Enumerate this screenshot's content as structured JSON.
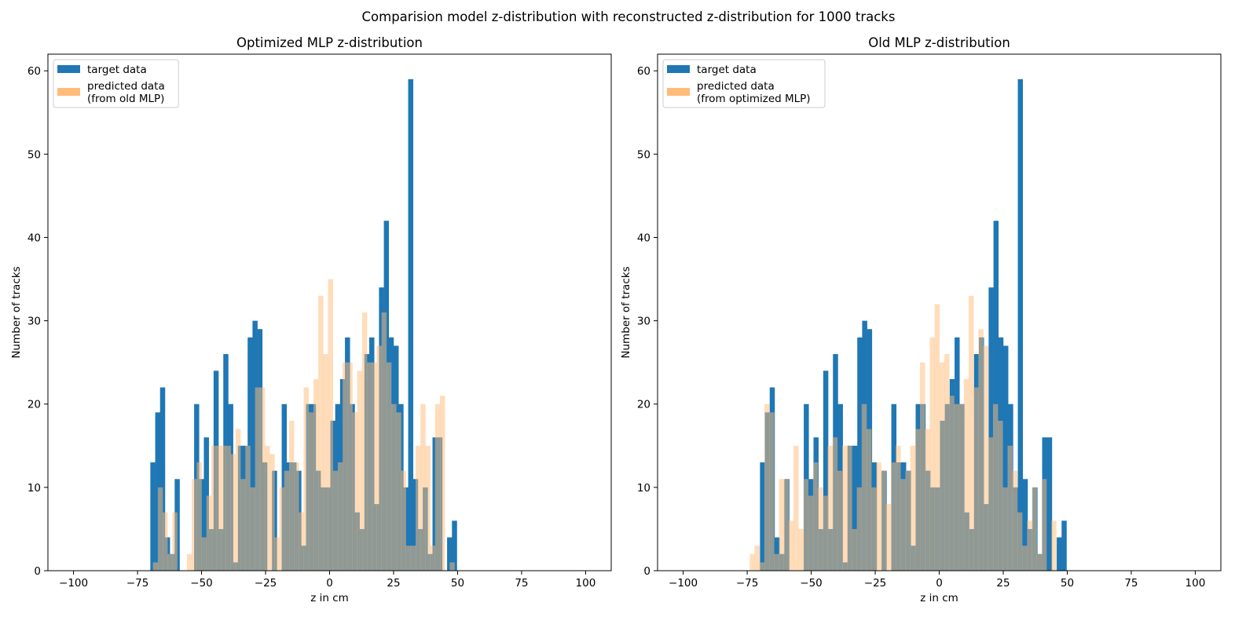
{
  "figure": {
    "suptitle": "Comparision model z-distribution with reconstructed z-distribution for 1000 tracks"
  },
  "colors": {
    "target": "#1f77b4",
    "predicted": "#ffbb78",
    "overlap": "#8e7860"
  },
  "chart_data": [
    {
      "type": "bar",
      "title": "Optimized MLP z-distribution",
      "xlabel": "z in cm",
      "ylabel": "Number of tracks",
      "xlim": [
        -110,
        110
      ],
      "ylim": [
        0,
        62
      ],
      "xticks": [
        -100,
        -75,
        -50,
        -25,
        0,
        25,
        50,
        75,
        100
      ],
      "yticks": [
        0,
        10,
        20,
        30,
        40,
        50,
        60
      ],
      "legend": {
        "position": "upper-left",
        "entries": [
          "target data",
          "predicted data\n(from old MLP)"
        ]
      },
      "series": [
        {
          "name": "target data",
          "bin_start": -70,
          "bin_width": 1.9,
          "values": [
            13,
            19,
            22,
            4,
            2,
            11,
            0,
            0,
            0,
            20,
            11,
            16,
            5,
            24,
            5,
            26,
            20,
            1,
            15,
            15,
            28,
            30,
            29,
            13,
            0,
            12,
            0,
            20,
            13,
            13,
            12,
            3,
            20,
            20,
            12,
            10,
            10,
            18,
            20,
            23,
            28,
            20,
            7,
            5,
            26,
            28,
            8,
            34,
            42,
            28,
            27,
            20,
            10,
            59,
            11,
            5,
            10,
            2,
            16,
            16,
            0,
            4,
            6
          ]
        },
        {
          "name": "predicted data\n(from old MLP)",
          "bin_start": -69,
          "bin_width": 1.9,
          "values": [
            1,
            10,
            7,
            2,
            7,
            0,
            0,
            2,
            11,
            13,
            4,
            9,
            15,
            15,
            15,
            15,
            14,
            17,
            11,
            15,
            10,
            22,
            22,
            15,
            14,
            4,
            10,
            12,
            18,
            13,
            7,
            22,
            19,
            23,
            33,
            26,
            35,
            12,
            13,
            25,
            25,
            19,
            24,
            31,
            25,
            25,
            27,
            31,
            25,
            20,
            19,
            12,
            3,
            3,
            15,
            20,
            15,
            3,
            20,
            21,
            0,
            1,
            0
          ]
        }
      ]
    },
    {
      "type": "bar",
      "title": "Old MLP z-distribution",
      "xlabel": "z in cm",
      "ylabel": "Number of tracks",
      "xlim": [
        -110,
        110
      ],
      "ylim": [
        0,
        62
      ],
      "xticks": [
        -100,
        -75,
        -50,
        -25,
        0,
        25,
        50,
        75,
        100
      ],
      "yticks": [
        0,
        10,
        20,
        30,
        40,
        50,
        60
      ],
      "legend": {
        "position": "upper-left",
        "entries": [
          "target data",
          "predicted data\n(from optimized MLP)"
        ]
      },
      "series": [
        {
          "name": "target data",
          "bin_start": -70,
          "bin_width": 1.9,
          "values": [
            13,
            19,
            22,
            4,
            2,
            11,
            0,
            0,
            0,
            20,
            11,
            16,
            5,
            24,
            5,
            26,
            20,
            1,
            15,
            15,
            28,
            30,
            29,
            13,
            0,
            12,
            0,
            20,
            13,
            13,
            12,
            3,
            20,
            20,
            12,
            10,
            10,
            18,
            20,
            23,
            28,
            20,
            7,
            5,
            26,
            28,
            8,
            34,
            42,
            28,
            27,
            20,
            10,
            59,
            11,
            5,
            10,
            2,
            16,
            16,
            0,
            4,
            6
          ]
        },
        {
          "name": "predicted data\n(from optimized MLP)",
          "bin_start": -74,
          "bin_width": 1.9,
          "values": [
            2,
            3,
            1,
            20,
            19,
            2,
            11,
            11,
            6,
            15,
            5,
            11,
            9,
            13,
            10,
            9,
            15,
            16,
            12,
            15,
            15,
            5,
            10,
            20,
            17,
            10,
            13,
            12,
            8,
            13,
            15,
            11,
            12,
            15,
            17,
            25,
            17,
            28,
            32,
            25,
            26,
            21,
            20,
            20,
            23,
            33,
            22,
            29,
            27,
            16,
            20,
            18,
            10,
            15,
            12,
            7,
            3,
            6,
            10,
            2,
            11,
            0,
            6
          ]
        }
      ]
    }
  ]
}
